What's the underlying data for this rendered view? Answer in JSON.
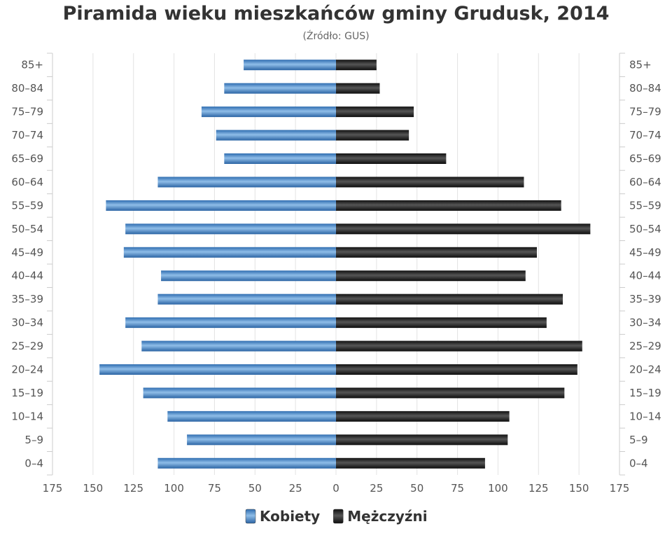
{
  "title": "Piramida wieku mieszkańców gminy Grudusk, 2014",
  "subtitle": "(Źródło: GUS)",
  "chart_data": {
    "type": "bar",
    "orientation": "horizontal-pyramid",
    "categories": [
      "0–4",
      "5–9",
      "10–14",
      "15–19",
      "20–24",
      "25–29",
      "30–34",
      "35–39",
      "40–44",
      "45–49",
      "50–54",
      "55–59",
      "60–64",
      "65–69",
      "70–74",
      "75–79",
      "80–84",
      "85+"
    ],
    "series": [
      {
        "name": "Kobiety",
        "side": "left",
        "color": "#4a8ad0",
        "values": [
          110,
          92,
          104,
          119,
          146,
          120,
          130,
          110,
          108,
          131,
          130,
          142,
          110,
          69,
          74,
          83,
          69,
          57
        ]
      },
      {
        "name": "Mężczyźni",
        "side": "right",
        "color": "#222222",
        "values": [
          92,
          106,
          107,
          141,
          149,
          152,
          130,
          140,
          117,
          124,
          157,
          139,
          116,
          68,
          45,
          48,
          27,
          25
        ]
      }
    ],
    "xlim": [
      -175,
      175
    ],
    "xticks": [
      -175,
      -150,
      -125,
      -100,
      -75,
      -50,
      -25,
      0,
      25,
      50,
      75,
      100,
      125,
      150,
      175
    ],
    "xtick_labels": [
      "175",
      "150",
      "125",
      "100",
      "75",
      "50",
      "25",
      "0",
      "25",
      "50",
      "75",
      "100",
      "125",
      "150",
      "175"
    ],
    "grid": true,
    "legend": "bottom-center"
  }
}
